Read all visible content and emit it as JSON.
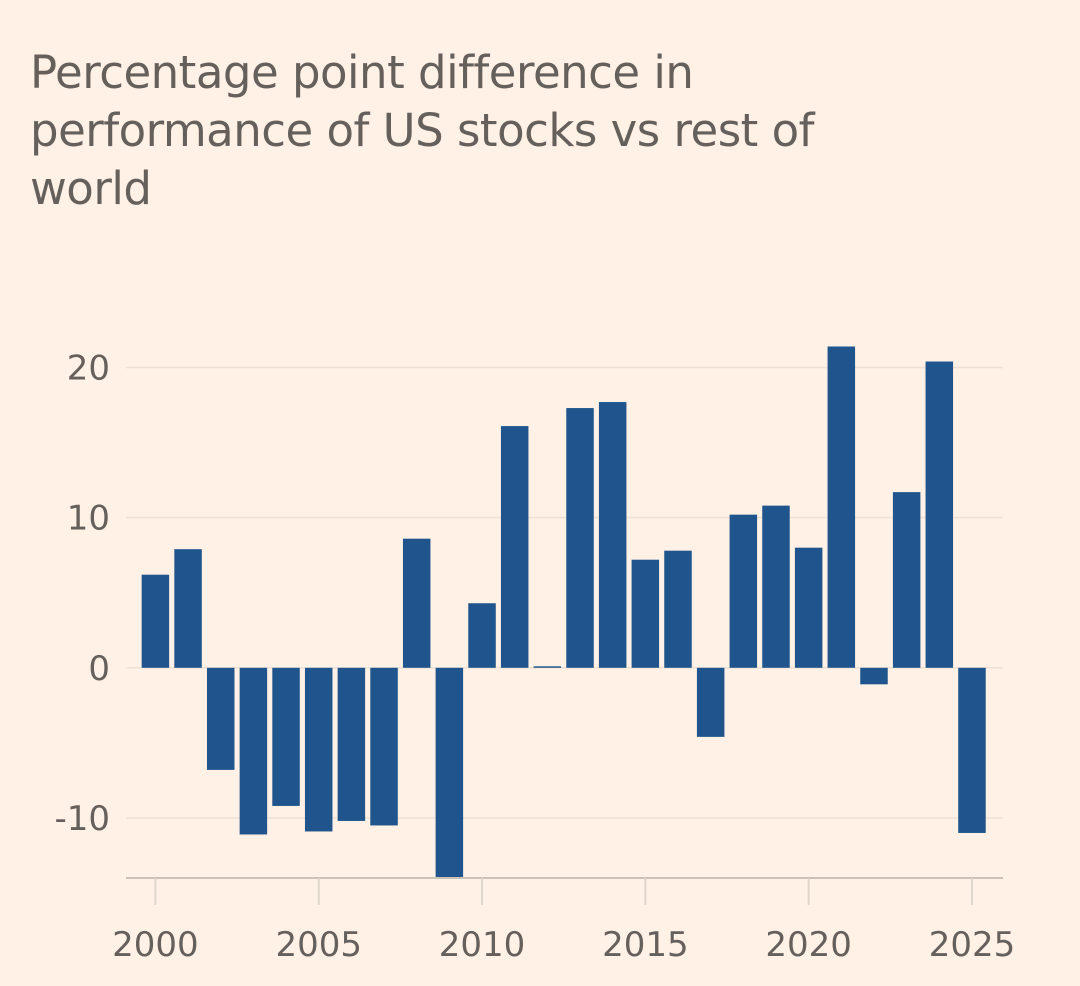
{
  "chart_data": {
    "type": "bar",
    "title": "Percentage point difference in performance of US stocks vs rest of world",
    "xlabel": "",
    "ylabel": "",
    "categories": [
      2000,
      2001,
      2002,
      2003,
      2004,
      2005,
      2006,
      2007,
      2008,
      2009,
      2010,
      2011,
      2012,
      2013,
      2014,
      2015,
      2016,
      2017,
      2018,
      2019,
      2020,
      2021,
      2022,
      2023,
      2024,
      2025
    ],
    "values": [
      6.2,
      7.9,
      -6.8,
      -11.1,
      -9.2,
      -10.9,
      -10.2,
      -10.5,
      8.6,
      -14.0,
      4.3,
      16.1,
      0.1,
      17.3,
      17.7,
      7.2,
      7.8,
      -4.6,
      10.2,
      10.8,
      8.0,
      21.4,
      -1.1,
      11.7,
      20.4,
      -11.0
    ],
    "ylim": [
      -14,
      21.5
    ],
    "xlim": [
      1999.1,
      2025.95
    ],
    "yticks": [
      -10,
      0,
      10,
      20
    ],
    "ytick_labels": [
      "-10",
      "0",
      "10",
      "20"
    ],
    "xticks": [
      2000,
      2005,
      2010,
      2015,
      2020,
      2025
    ],
    "xtick_labels": [
      "2000",
      "2005",
      "2010",
      "2015",
      "2020",
      "2025"
    ],
    "grid": true,
    "legend": "none",
    "colors": {
      "bar": "#1f558c",
      "background": "#fff1e5",
      "text": "#66605c"
    }
  }
}
